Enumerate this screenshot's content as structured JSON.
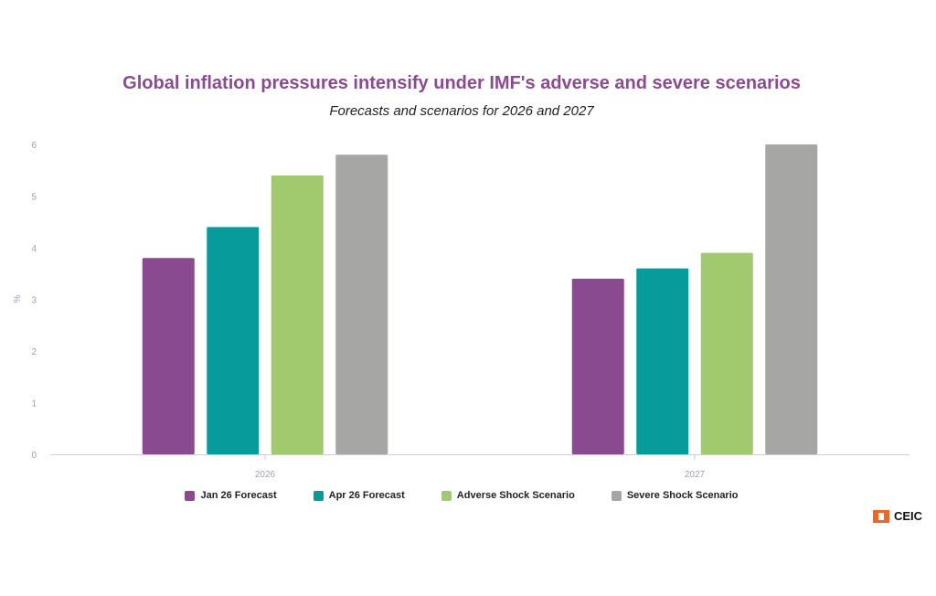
{
  "chart_data": {
    "type": "bar",
    "title": "Global inflation pressures intensify under IMF's adverse and severe scenarios",
    "subtitle": "Forecasts and scenarios for 2026 and 2027",
    "ylabel": "%",
    "xlabel": "",
    "ylim": [
      0,
      6
    ],
    "yticks": [
      0,
      1,
      2,
      3,
      4,
      5,
      6
    ],
    "categories": [
      "2026",
      "2027"
    ],
    "series": [
      {
        "name": "Jan 26 Forecast",
        "color": "#8a4a8f",
        "values": [
          3.8,
          3.4
        ]
      },
      {
        "name": "Apr 26 Forecast",
        "color": "#079b9b",
        "values": [
          4.4,
          3.6
        ]
      },
      {
        "name": "Adverse Shock Scenario",
        "color": "#a1c96d",
        "values": [
          5.4,
          3.9
        ]
      },
      {
        "name": "Severe Shock Scenario",
        "color": "#a6a6a4",
        "values": [
          5.8,
          6.0
        ]
      }
    ],
    "legend_position": "bottom"
  },
  "logo": {
    "text": "CEIC",
    "color": "#f26522"
  }
}
